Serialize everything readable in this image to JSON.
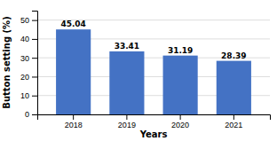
{
  "chart_data": {
    "type": "bar",
    "categories": [
      "2018",
      "2019",
      "2020",
      "2021"
    ],
    "values": [
      45.04,
      33.41,
      31.19,
      28.39
    ],
    "color": "#4472C4",
    "xlabel": "Years",
    "ylabel": "Button setting (%)",
    "ylim": [
      0,
      55
    ],
    "yticks": [
      0,
      10,
      20,
      30,
      40,
      50
    ],
    "grid": true,
    "data_labels": true
  }
}
